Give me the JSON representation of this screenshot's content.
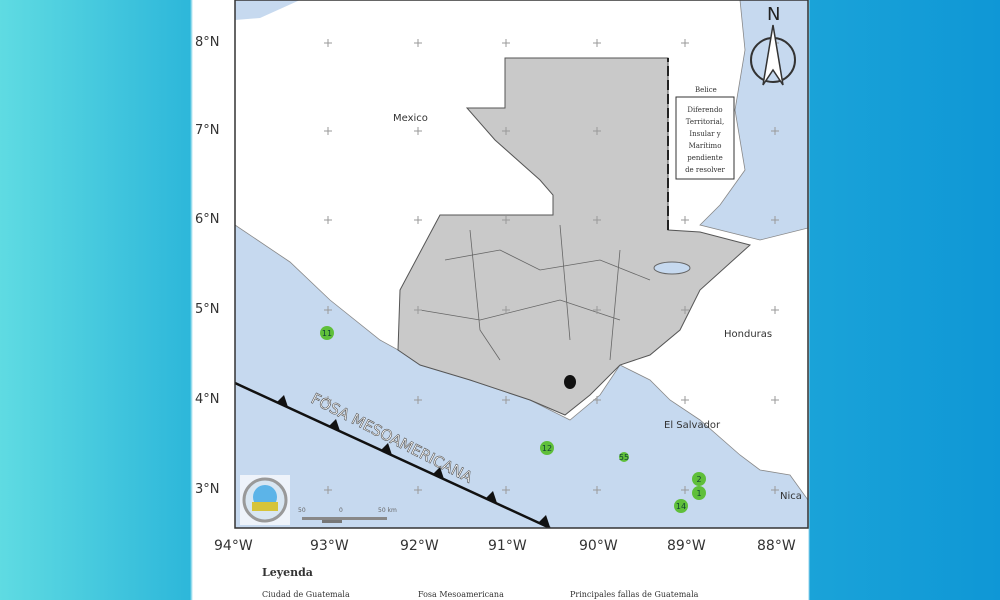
{
  "map": {
    "lat_labels": [
      "8°N",
      "7°N",
      "6°N",
      "5°N",
      "4°N",
      "3°N"
    ],
    "lon_labels": [
      "94°W",
      "93°W",
      "92°W",
      "91°W",
      "90°W",
      "89°W",
      "88°W"
    ],
    "place_labels": {
      "mexico": "Mexico",
      "belice": "Belice",
      "honduras": "Honduras",
      "el_salvador": "El Salvador",
      "nicaragua": "Nica"
    },
    "belize_note": [
      "Diferendo",
      "Territorial,",
      "Insular y",
      "Marítimo",
      "pendiente",
      "de resolver"
    ],
    "trench_label": "FOSA MESOAMERICANA",
    "north_label": "N",
    "scale_labels": [
      "50",
      "0",
      "50 km"
    ],
    "markers": [
      "11",
      "12",
      "55",
      "2",
      "1",
      "14"
    ],
    "colors": {
      "ocean": "#c6d9ef",
      "guatemala": "#c9c9c9",
      "marker": "#5fbf3a"
    }
  },
  "legend": {
    "title": "Leyenda",
    "items": [
      "Ciudad de Guatemala",
      "Fosa Mesoamericana",
      "Principales fallas de Guatemala"
    ]
  }
}
